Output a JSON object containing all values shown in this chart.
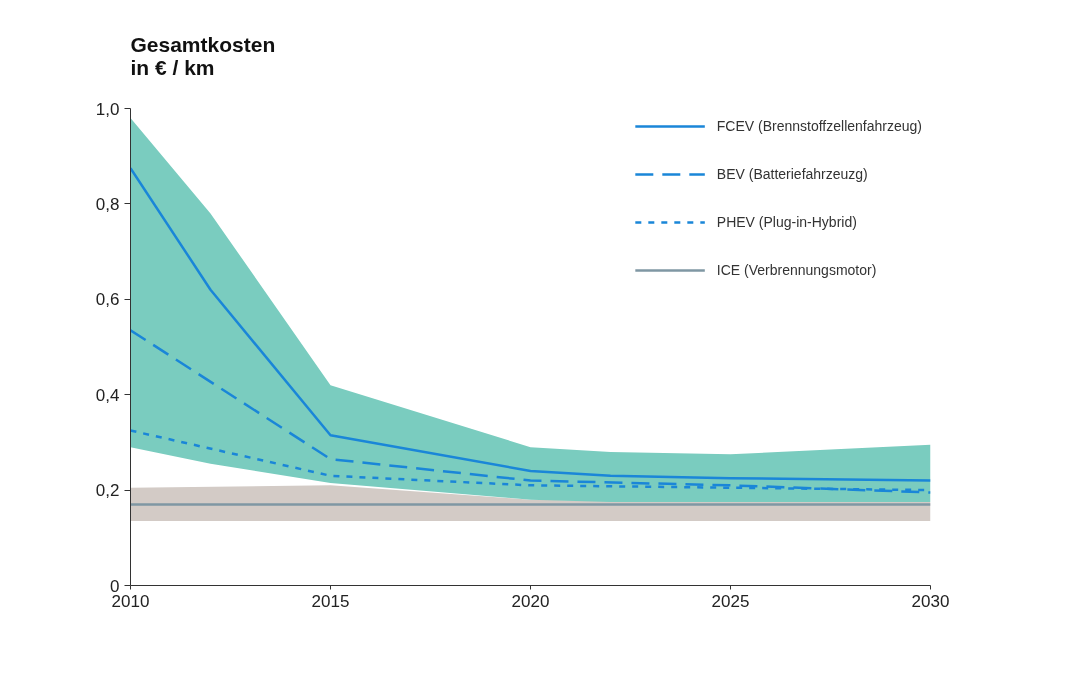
{
  "chart_data": {
    "type": "line",
    "title": "Gesamtkosten\nin € / km",
    "xlim": [
      2010,
      2030
    ],
    "xticks": [
      2010,
      2015,
      2020,
      2025,
      2030
    ],
    "ylim": [
      0,
      1.0
    ],
    "yticks": [
      0,
      {
        "value": 0.2,
        "label": "0,2"
      },
      {
        "value": 0.4,
        "label": "0,4"
      },
      {
        "value": 0.6,
        "label": "0,6"
      },
      {
        "value": 0.8,
        "label": "0,8"
      },
      {
        "value": 1.0,
        "label": "1,0"
      }
    ],
    "grid": false,
    "legend": "top right",
    "marker": "none",
    "series": [
      {
        "name": "FCEV (Brennstoffzellenfahrzeug)",
        "color": "#1a86d8",
        "line_style": "solid",
        "x": [
          2010,
          2012,
          2015,
          2020,
          2022,
          2025,
          2030
        ],
        "values": [
          0.875,
          0.62,
          0.315,
          0.24,
          0.23,
          0.225,
          0.22
        ],
        "lower": [
          0.29,
          0.255,
          0.215,
          0.18,
          0.175,
          0.175,
          0.175
        ],
        "upper": [
          0.98,
          0.78,
          0.42,
          0.29,
          0.28,
          0.275,
          0.295
        ]
      },
      {
        "name": "BEV (Batteriefahrzeuzg)",
        "color": "#1a86d8",
        "line_style": "dashed",
        "x": [
          2010,
          2015,
          2020,
          2025,
          2030
        ],
        "values": [
          0.535,
          0.265,
          0.22,
          0.21,
          0.195
        ]
      },
      {
        "name": "PHEV (Plug-in-Hybrid)",
        "color": "#1a86d8",
        "line_style": "dotted",
        "x": [
          2010,
          2015,
          2020,
          2025,
          2030
        ],
        "values": [
          0.325,
          0.23,
          0.21,
          0.205,
          0.2
        ]
      },
      {
        "name": "ICE (Verbrennungsmotor)",
        "color": "#7f97a3",
        "line_style": "solid",
        "x": [
          2010,
          2015,
          2020,
          2025,
          2030
        ],
        "values": [
          0.17,
          0.17,
          0.17,
          0.17,
          0.17
        ],
        "lower": [
          0.135,
          0.135,
          0.135,
          0.135,
          0.135
        ],
        "upper": [
          0.205,
          0.21,
          0.18,
          0.175,
          0.175
        ]
      }
    ]
  }
}
